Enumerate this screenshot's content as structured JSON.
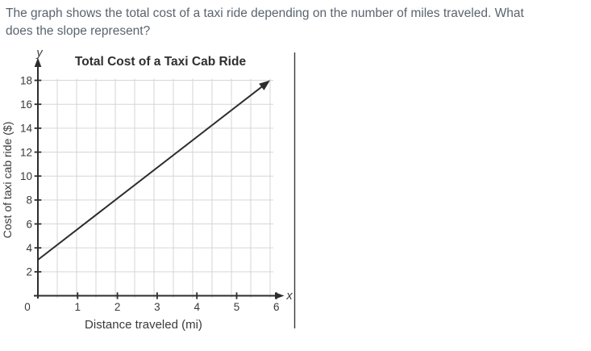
{
  "question": {
    "line1": "The graph shows the total cost of a taxi ride depending on the number of miles traveled. What",
    "line2": "does the slope represent?"
  },
  "chart_data": {
    "type": "line",
    "title": "Total Cost of a Taxi Cab Ride",
    "xlabel": "Distance traveled (mi)",
    "ylabel": "Cost of taxi cab ride ($)",
    "x_axis_symbol": "x",
    "y_axis_symbol": "y",
    "x_ticks": [
      0,
      1,
      2,
      3,
      4,
      5,
      6
    ],
    "y_ticks": [
      2,
      4,
      6,
      8,
      10,
      12,
      14,
      16,
      18
    ],
    "xlim": [
      0,
      6
    ],
    "ylim": [
      0,
      19
    ],
    "grid": true,
    "x_minor_grid_step": 0.5,
    "y_grid_step": 2,
    "series": [
      {
        "name": "total-cost-line",
        "x": [
          0,
          6
        ],
        "y": [
          3,
          18
        ],
        "slope": 2.5,
        "y_intercept": 3,
        "equation": "y = 2.5x + 3",
        "arrow_end": true
      }
    ],
    "legend": null,
    "colors": {
      "axis": "#2d2d2d",
      "grid": "#d6d6d6",
      "line": "#2d2d2d",
      "text": "#3a3a3a",
      "title": "#2f2f2f",
      "question_text": "#5a646e",
      "border": "#3a3a3a"
    }
  }
}
